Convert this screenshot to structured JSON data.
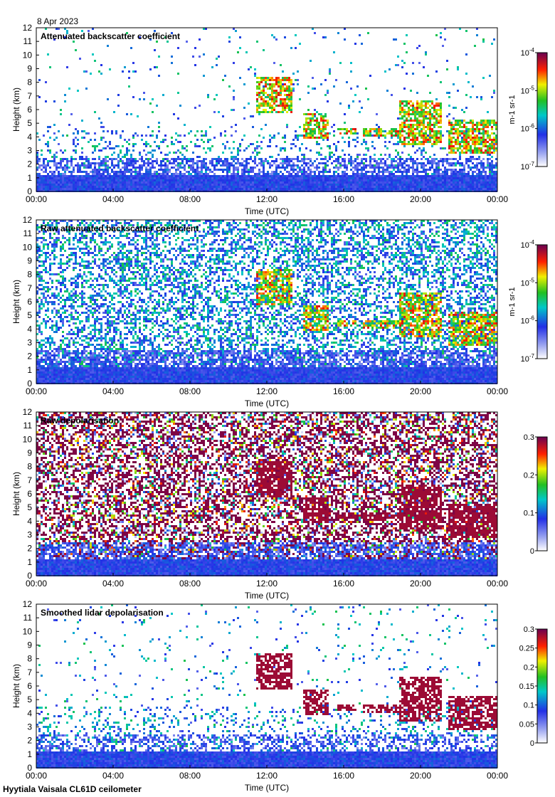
{
  "date": "8 Apr 2023",
  "footer": "Hyytiala Vaisala CL61D ceilometer",
  "chart_data": [
    {
      "type": "heatmap",
      "title": "Attenuated backscatter coefficient",
      "xlabel": "Time (UTC)",
      "ylabel": "Height (km)",
      "xticks": [
        "00:00",
        "04:00",
        "08:00",
        "12:00",
        "16:00",
        "20:00",
        "00:00"
      ],
      "yticks": [
        "0",
        "1",
        "2",
        "3",
        "4",
        "5",
        "6",
        "7",
        "8",
        "9",
        "10",
        "11",
        "12"
      ],
      "ylim": [
        0,
        12
      ],
      "xlim_hours": [
        0,
        24
      ],
      "colorbar": {
        "scale": "log",
        "min": 1e-07,
        "max": 0.0001,
        "ticks": [
          "10-7",
          "10-6",
          "10-5",
          "10-4"
        ],
        "unit": "m-1 sr-1"
      }
    },
    {
      "type": "heatmap",
      "title": "Raw attenuated backscatter coefficient",
      "xlabel": "Time (UTC)",
      "ylabel": "Height (km)",
      "xticks": [
        "00:00",
        "04:00",
        "08:00",
        "12:00",
        "16:00",
        "20:00",
        "00:00"
      ],
      "yticks": [
        "0",
        "1",
        "2",
        "3",
        "4",
        "5",
        "6",
        "7",
        "8",
        "9",
        "10",
        "11",
        "12"
      ],
      "ylim": [
        0,
        12
      ],
      "xlim_hours": [
        0,
        24
      ],
      "colorbar": {
        "scale": "log",
        "min": 1e-07,
        "max": 0.0001,
        "ticks": [
          "10-7",
          "10-6",
          "10-5",
          "10-4"
        ],
        "unit": "m-1 sr-1"
      }
    },
    {
      "type": "heatmap",
      "title": "Raw depolarisation",
      "xlabel": "Time (UTC)",
      "ylabel": "Height (km)",
      "xticks": [
        "00:00",
        "04:00",
        "08:00",
        "12:00",
        "16:00",
        "20:00",
        "00:00"
      ],
      "yticks": [
        "0",
        "1",
        "2",
        "3",
        "4",
        "5",
        "6",
        "7",
        "8",
        "9",
        "10",
        "11",
        "12"
      ],
      "ylim": [
        0,
        12
      ],
      "xlim_hours": [
        0,
        24
      ],
      "colorbar": {
        "scale": "linear",
        "min": 0,
        "max": 0.3,
        "ticks": [
          "0",
          "0.1",
          "0.2",
          "0.3"
        ],
        "unit": ""
      }
    },
    {
      "type": "heatmap",
      "title": "Smoothed lidar depolarisation",
      "xlabel": "Time (UTC)",
      "ylabel": "Height (km)",
      "xticks": [
        "00:00",
        "04:00",
        "08:00",
        "12:00",
        "16:00",
        "20:00",
        "00:00"
      ],
      "yticks": [
        "0",
        "1",
        "2",
        "3",
        "4",
        "5",
        "6",
        "7",
        "8",
        "9",
        "10",
        "11",
        "12"
      ],
      "ylim": [
        0,
        12
      ],
      "xlim_hours": [
        0,
        24
      ],
      "colorbar": {
        "scale": "linear",
        "min": 0,
        "max": 0.3,
        "ticks": [
          "0",
          "0.05",
          "0.1",
          "0.15",
          "0.2",
          "0.25",
          "0.3"
        ],
        "unit": ""
      }
    }
  ]
}
